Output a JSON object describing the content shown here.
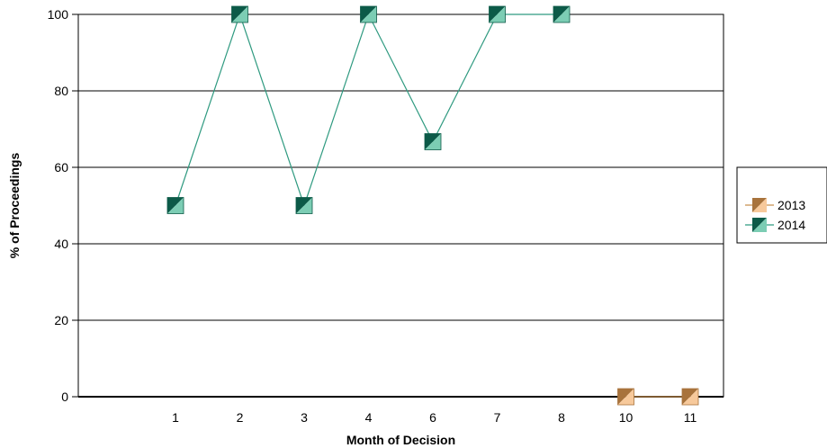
{
  "chart_data": {
    "type": "line",
    "title": "",
    "xlabel": "Month of Decision",
    "ylabel": "% of Proceedings",
    "categories": [
      "1",
      "2",
      "3",
      "4",
      "6",
      "7",
      "8",
      "10",
      "11"
    ],
    "yticks": [
      "0",
      "20",
      "40",
      "60",
      "80",
      "100"
    ],
    "ylim": [
      0,
      100
    ],
    "grid": "horizontal",
    "legend_position": "right",
    "series": [
      {
        "name": "2013",
        "values": [
          null,
          null,
          null,
          null,
          null,
          null,
          null,
          0,
          0
        ],
        "line_color": "#c8914f",
        "marker_dark": "#a8733c",
        "marker_light": "#f7c99b"
      },
      {
        "name": "2014",
        "values": [
          50,
          100,
          50,
          100,
          66.7,
          100,
          100,
          null,
          null
        ],
        "line_color": "#2f9a80",
        "marker_dark": "#0c5a48",
        "marker_light": "#7ccdb4"
      }
    ]
  }
}
